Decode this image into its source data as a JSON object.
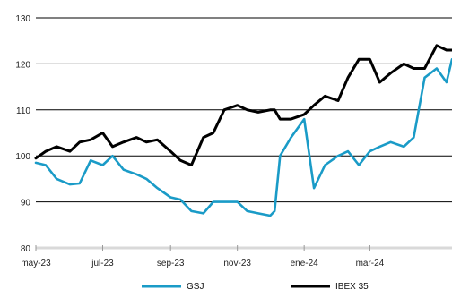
{
  "chart_data": {
    "type": "line",
    "title": "",
    "xlabel": "",
    "ylabel": "",
    "ylim": [
      80,
      130
    ],
    "yticks": [
      80,
      90,
      100,
      110,
      120,
      130
    ],
    "grid": "horizontal",
    "legend_position": "bottom",
    "x_tick_labels": [
      "may-23",
      "jul-23",
      "sep-23",
      "nov-23",
      "ene-24",
      "mar-24"
    ],
    "x_tick_dates": [
      "2023-05-01",
      "2023-07-01",
      "2023-09-01",
      "2023-11-01",
      "2024-01-01",
      "2024-03-01"
    ],
    "xlim": [
      "2023-05-01",
      "2024-05-15"
    ],
    "x": [
      "2023-05-01",
      "2023-05-10",
      "2023-05-20",
      "2023-06-01",
      "2023-06-10",
      "2023-06-20",
      "2023-07-01",
      "2023-07-10",
      "2023-07-20",
      "2023-08-01",
      "2023-08-10",
      "2023-08-20",
      "2023-09-01",
      "2023-09-10",
      "2023-09-20",
      "2023-10-01",
      "2023-10-10",
      "2023-10-20",
      "2023-11-01",
      "2023-11-10",
      "2023-11-20",
      "2023-12-01",
      "2023-12-05",
      "2023-12-10",
      "2023-12-20",
      "2024-01-01",
      "2024-01-10",
      "2024-01-20",
      "2024-02-01",
      "2024-02-10",
      "2024-02-20",
      "2024-03-01",
      "2024-03-10",
      "2024-03-20",
      "2024-04-01",
      "2024-04-10",
      "2024-04-20",
      "2024-05-01",
      "2024-05-10",
      "2024-05-15"
    ],
    "series": [
      {
        "name": "GSJ",
        "color": "#1a9bc7",
        "values": [
          98.5,
          98,
          95,
          93.8,
          94,
          99,
          98,
          100,
          97,
          96,
          95,
          93,
          91,
          90.5,
          88,
          87.5,
          90,
          90,
          90,
          88,
          87.5,
          87,
          88,
          100,
          104,
          108,
          93,
          98,
          100,
          101,
          98,
          101,
          102,
          103,
          102,
          104,
          117,
          119,
          116,
          121
        ]
      },
      {
        "name": "IBEX 35",
        "color": "#000000",
        "values": [
          99.5,
          101,
          102,
          101,
          103,
          103.5,
          105,
          102,
          103,
          104,
          103,
          103.5,
          101,
          99,
          98,
          104,
          105,
          110,
          111,
          110,
          109.5,
          110,
          110,
          108,
          108,
          109,
          111,
          113,
          112,
          117,
          121,
          121,
          116,
          118,
          120,
          119,
          119,
          124,
          123,
          123
        ]
      }
    ]
  }
}
